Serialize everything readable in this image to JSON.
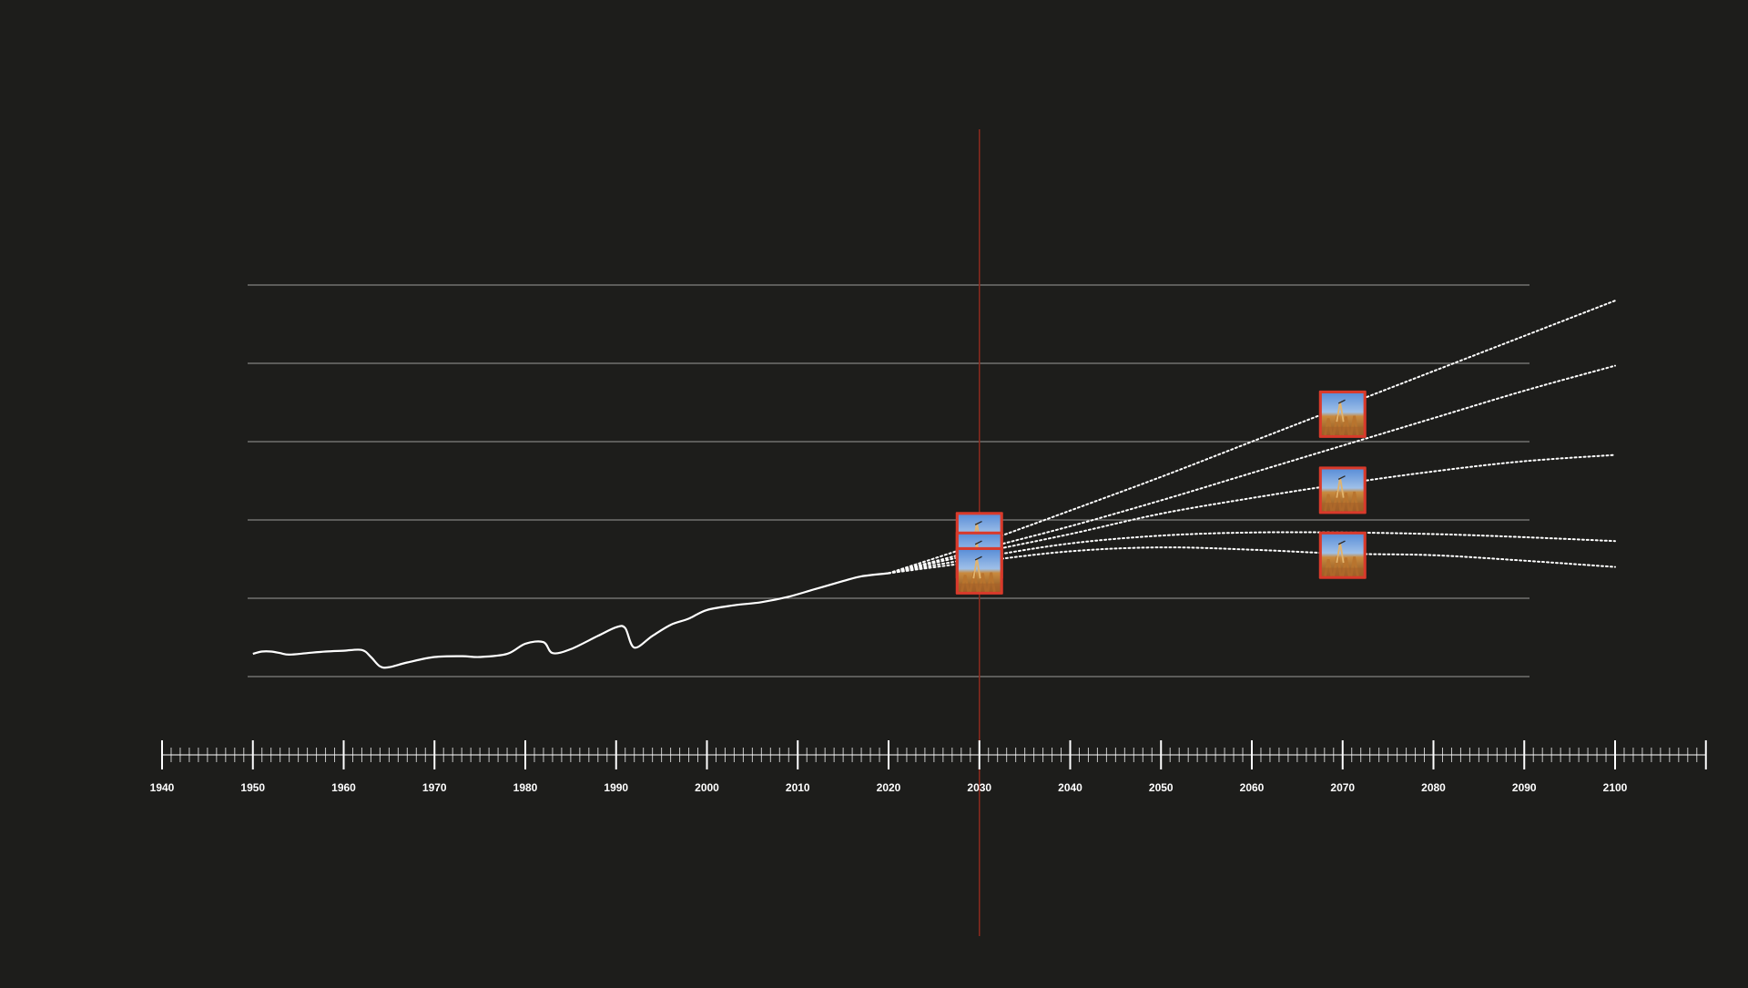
{
  "colors": {
    "background": "#1d1d1b",
    "line": "#ffffff",
    "grid": "#9a9a98",
    "marker": "#8b2a1e",
    "marker_box": "#d93a2b"
  },
  "icons": {
    "scenario_marker": "wheat-field-photo-icon"
  },
  "chart_data": {
    "type": "line",
    "xlim": [
      1940,
      2100
    ],
    "ylim": [
      0,
      5
    ],
    "grid": true,
    "gridlines_y": [
      0,
      1,
      2,
      3,
      4,
      5
    ],
    "x_ticks": [
      "1940",
      "1950",
      "1960",
      "1970",
      "1980",
      "1990",
      "2000",
      "2010",
      "2020",
      "2030",
      "2040",
      "2050",
      "2060",
      "2070",
      "2080",
      "2090",
      "2100"
    ],
    "marker_year": 2030,
    "history": {
      "x": [
        1950,
        1951,
        1952,
        1953,
        1954,
        1956,
        1958,
        1960,
        1962,
        1963,
        1964,
        1965,
        1967,
        1970,
        1973,
        1975,
        1978,
        1980,
        1982,
        1983,
        1985,
        1988,
        1990,
        1991,
        1992,
        1994,
        1996,
        1998,
        2000,
        2003,
        2006,
        2009,
        2012,
        2015,
        2017,
        2020
      ],
      "y": [
        0.29,
        0.32,
        0.32,
        0.3,
        0.28,
        0.3,
        0.32,
        0.33,
        0.34,
        0.25,
        0.13,
        0.12,
        0.18,
        0.25,
        0.26,
        0.25,
        0.29,
        0.42,
        0.44,
        0.3,
        0.35,
        0.52,
        0.63,
        0.62,
        0.37,
        0.52,
        0.66,
        0.74,
        0.85,
        0.91,
        0.95,
        1.02,
        1.12,
        1.22,
        1.28,
        1.32
      ]
    },
    "series": [
      {
        "x": [
          2020,
          2030,
          2040,
          2050,
          2060,
          2070,
          2080,
          2090,
          2100
        ],
        "y": [
          1.32,
          1.7,
          2.12,
          2.55,
          3.0,
          3.45,
          3.9,
          4.35,
          4.8
        ]
      },
      {
        "x": [
          2020,
          2030,
          2040,
          2050,
          2060,
          2070,
          2080,
          2090,
          2100
        ],
        "y": [
          1.32,
          1.62,
          1.92,
          2.25,
          2.6,
          2.95,
          3.3,
          3.65,
          3.97
        ]
      },
      {
        "x": [
          2020,
          2030,
          2040,
          2050,
          2060,
          2070,
          2080,
          2090,
          2100
        ],
        "y": [
          1.32,
          1.58,
          1.82,
          2.08,
          2.28,
          2.46,
          2.62,
          2.75,
          2.83
        ]
      },
      {
        "x": [
          2020,
          2030,
          2040,
          2050,
          2060,
          2070,
          2080,
          2090,
          2100
        ],
        "y": [
          1.32,
          1.52,
          1.7,
          1.8,
          1.84,
          1.84,
          1.82,
          1.78,
          1.73
        ]
      },
      {
        "x": [
          2020,
          2030,
          2040,
          2050,
          2060,
          2070,
          2080,
          2090,
          2100
        ],
        "y": [
          1.32,
          1.47,
          1.6,
          1.65,
          1.62,
          1.57,
          1.55,
          1.48,
          1.4
        ]
      }
    ],
    "markers": [
      {
        "x": 2030,
        "y": 1.8
      },
      {
        "x": 2030,
        "y": 1.55
      },
      {
        "x": 2030,
        "y": 1.35
      },
      {
        "x": 2070,
        "y": 3.35
      },
      {
        "x": 2070,
        "y": 2.38
      },
      {
        "x": 2070,
        "y": 1.55
      }
    ]
  }
}
